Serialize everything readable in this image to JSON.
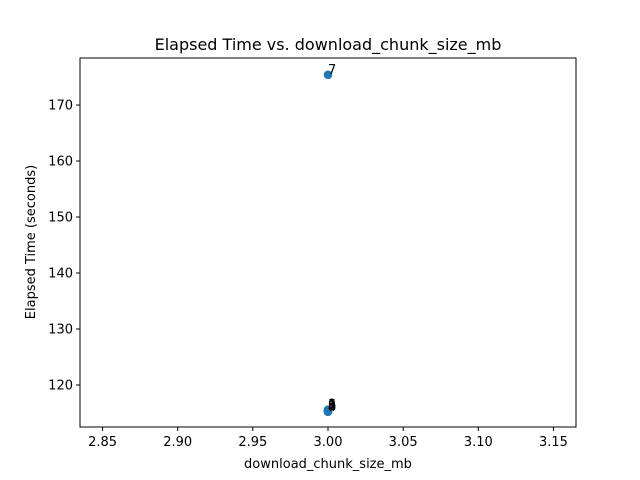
{
  "chart_data": {
    "type": "scatter",
    "title": "Elapsed Time vs. download_chunk_size_mb",
    "xlabel": "download_chunk_size_mb",
    "ylabel": "Elapsed Time (seconds)",
    "xlim": [
      2.835,
      3.165
    ],
    "ylim": [
      112.5,
      178.4
    ],
    "x_ticks": [
      "2.85",
      "2.90",
      "2.95",
      "3.00",
      "3.05",
      "3.10",
      "3.15"
    ],
    "y_ticks": [
      "120",
      "130",
      "140",
      "150",
      "160",
      "170"
    ],
    "grid": false,
    "marker_color": "#1f77b4",
    "points": [
      {
        "x": 3.0,
        "y": 175.4,
        "label": "7"
      },
      {
        "x": 3.0,
        "y": 115.6,
        "label": "1"
      },
      {
        "x": 3.0,
        "y": 115.4,
        "label": "2"
      },
      {
        "x": 3.0,
        "y": 115.3,
        "label": "3"
      },
      {
        "x": 3.0,
        "y": 115.2,
        "label": "4"
      },
      {
        "x": 3.0,
        "y": 115.3,
        "label": "5"
      },
      {
        "x": 3.0,
        "y": 115.5,
        "label": "6"
      }
    ]
  }
}
